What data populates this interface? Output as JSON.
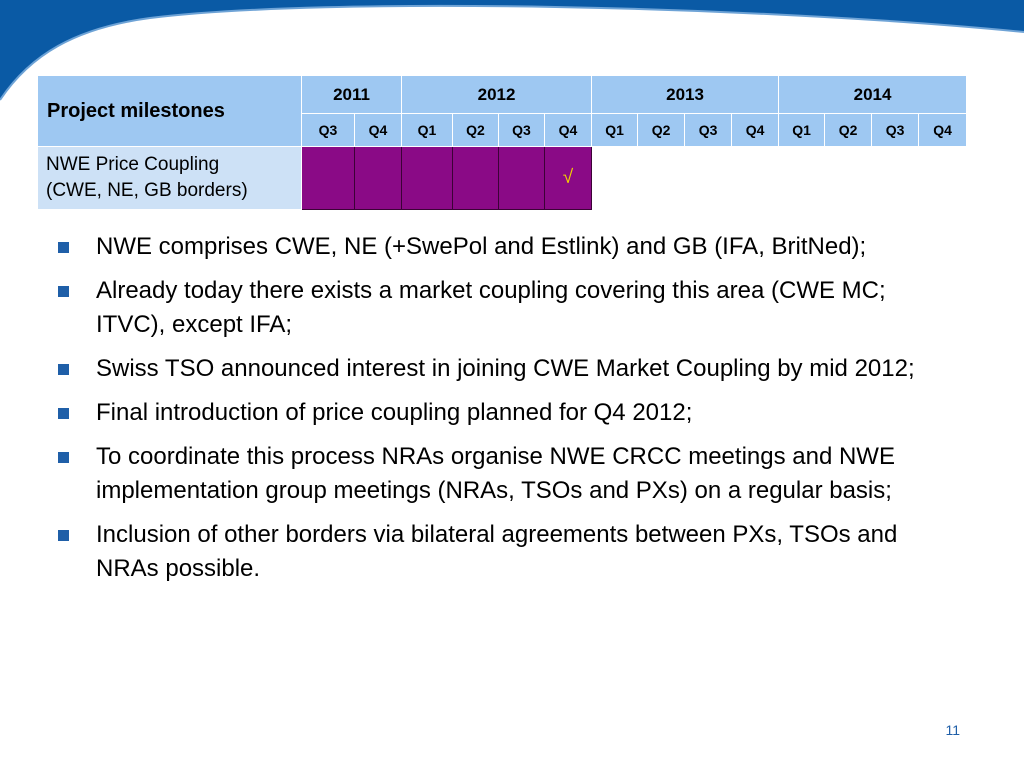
{
  "table": {
    "title": "Project milestones",
    "years": [
      "2011",
      "2012",
      "2013",
      "2014"
    ],
    "quarters": [
      "Q3",
      "Q4",
      "Q1",
      "Q2",
      "Q3",
      "Q4",
      "Q1",
      "Q2",
      "Q3",
      "Q4",
      "Q1",
      "Q2",
      "Q3",
      "Q4"
    ],
    "row_label_line1": "NWE Price Coupling",
    "row_label_line2": "(CWE, NE, GB borders)",
    "check_mark": "√",
    "colors": {
      "header": "#9ec8f2",
      "label": "#cde1f6",
      "milestone": "#8a0a86",
      "check": "#f2d200"
    }
  },
  "bullets": [
    "NWE comprises CWE, NE (+SwePol and Estlink) and GB (IFA, BritNed);",
    "Already today there exists a market coupling covering this area (CWE MC; ITVC), except IFA;",
    "Swiss TSO announced interest in joining CWE Market Coupling by mid 2012;",
    "Final introduction of price coupling planned for Q4 2012;",
    "To coordinate this process NRAs organise NWE CRCC meetings and NWE implementation group meetings (NRAs, TSOs and PXs) on a regular basis;",
    "Inclusion of other borders via bilateral agreements between PXs, TSOs and NRAs possible."
  ],
  "page_number": "11"
}
